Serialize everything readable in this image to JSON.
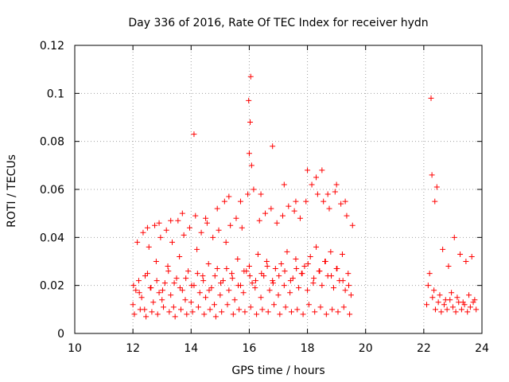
{
  "chart_data": {
    "type": "scatter",
    "title": "Day 336 of 2016, Rate Of TEC Index for receiver hydn",
    "xlabel": "GPS time / hours",
    "ylabel": "ROTI / TECUs",
    "xlim": [
      10,
      24
    ],
    "ylim": [
      0,
      0.12
    ],
    "x_ticks": [
      10,
      12,
      14,
      16,
      18,
      20,
      22,
      24
    ],
    "x_tick_labels": [
      "10",
      "12",
      "14",
      "16",
      "18",
      "20",
      "22",
      "24"
    ],
    "y_ticks": [
      0,
      0.02,
      0.04,
      0.06,
      0.08,
      0.1,
      0.12
    ],
    "y_tick_labels": [
      "0",
      "0.02",
      "0.04",
      "0.06",
      "0.08",
      "0.1",
      "0.12"
    ],
    "grid": true,
    "marker": "plus",
    "color": "#ff0000",
    "series": [
      {
        "name": "ROTI",
        "x": [
          12.0,
          12.1,
          12.2,
          12.3,
          12.4,
          12.5,
          12.6,
          12.7,
          12.8,
          12.9,
          13.0,
          13.1,
          13.2,
          13.3,
          13.4,
          13.5,
          13.6,
          13.7,
          13.8,
          13.9,
          14.0,
          14.1,
          14.2,
          14.3,
          14.4,
          14.5,
          14.6,
          14.7,
          14.8,
          14.9,
          15.0,
          15.1,
          15.2,
          15.3,
          15.4,
          15.5,
          15.6,
          15.7,
          15.8,
          15.9,
          16.0,
          16.1,
          16.2,
          16.3,
          16.4,
          16.5,
          16.6,
          16.7,
          16.8,
          16.9,
          17.0,
          17.1,
          17.2,
          17.3,
          17.4,
          17.5,
          17.6,
          17.7,
          17.8,
          17.9,
          18.0,
          18.1,
          18.2,
          18.3,
          18.4,
          18.5,
          18.6,
          18.7,
          18.8,
          18.9,
          19.0,
          19.1,
          19.2,
          19.3,
          19.4,
          19.5,
          12.05,
          12.25,
          12.45,
          12.65,
          12.85,
          13.05,
          13.25,
          13.45,
          13.65,
          13.85,
          14.05,
          14.25,
          14.45,
          14.65,
          14.85,
          15.05,
          15.25,
          15.45,
          15.65,
          15.85,
          16.05,
          16.25,
          16.45,
          16.65,
          16.85,
          17.05,
          17.25,
          17.45,
          17.65,
          17.85,
          18.05,
          18.25,
          18.45,
          18.65,
          18.85,
          19.05,
          19.25,
          19.45,
          12.15,
          12.35,
          12.55,
          12.75,
          12.95,
          13.15,
          13.35,
          13.55,
          13.75,
          13.95,
          14.15,
          14.35,
          14.55,
          14.75,
          14.95,
          15.15,
          15.35,
          15.55,
          15.75,
          15.95,
          16.15,
          16.35,
          16.55,
          16.75,
          16.95,
          17.15,
          17.35,
          17.55,
          17.75,
          17.95,
          18.15,
          18.35,
          18.55,
          18.75,
          18.95,
          19.15,
          19.35,
          19.55,
          12.02,
          12.22,
          12.42,
          12.62,
          12.82,
          13.02,
          13.22,
          13.42,
          13.62,
          13.82,
          14.02,
          14.22,
          14.42,
          14.62,
          14.82,
          15.02,
          15.22,
          15.42,
          15.62,
          15.82,
          16.02,
          16.22,
          16.42,
          16.62,
          16.82,
          17.02,
          17.22,
          17.42,
          17.62,
          17.82,
          18.02,
          18.22,
          18.42,
          18.62,
          18.82,
          19.02,
          19.22,
          19.42,
          12.5,
          12.9,
          13.3,
          13.7,
          14.1,
          14.5,
          14.9,
          15.3,
          15.7,
          16.0,
          16.03,
          16.05,
          15.98,
          16.08,
          16.4,
          16.8,
          17.2,
          17.6,
          18.0,
          18.3,
          18.5,
          18.7,
          19.0,
          19.3,
          22.1,
          22.2,
          22.3,
          22.4,
          22.5,
          22.6,
          22.7,
          22.8,
          22.9,
          23.0,
          23.1,
          23.2,
          23.3,
          23.4,
          23.5,
          23.6,
          23.7,
          23.8,
          22.15,
          22.35,
          22.55,
          22.75,
          22.95,
          23.15,
          23.35,
          23.55,
          23.75,
          22.25,
          22.28,
          22.38,
          22.45,
          22.65,
          22.85,
          23.05,
          23.25,
          23.45,
          23.65
        ],
        "y": [
          0.012,
          0.018,
          0.022,
          0.015,
          0.01,
          0.025,
          0.019,
          0.013,
          0.03,
          0.017,
          0.014,
          0.021,
          0.028,
          0.016,
          0.011,
          0.023,
          0.032,
          0.018,
          0.014,
          0.026,
          0.013,
          0.02,
          0.035,
          0.017,
          0.024,
          0.015,
          0.029,
          0.019,
          0.012,
          0.027,
          0.016,
          0.022,
          0.038,
          0.018,
          0.025,
          0.014,
          0.031,
          0.02,
          0.017,
          0.026,
          0.028,
          0.021,
          0.019,
          0.033,
          0.015,
          0.024,
          0.03,
          0.018,
          0.022,
          0.027,
          0.016,
          0.029,
          0.02,
          0.034,
          0.017,
          0.023,
          0.031,
          0.019,
          0.025,
          0.028,
          0.018,
          0.032,
          0.021,
          0.036,
          0.026,
          0.02,
          0.03,
          0.024,
          0.034,
          0.019,
          0.027,
          0.022,
          0.033,
          0.018,
          0.025,
          0.016,
          0.008,
          0.01,
          0.007,
          0.009,
          0.008,
          0.011,
          0.009,
          0.007,
          0.01,
          0.008,
          0.009,
          0.011,
          0.008,
          0.01,
          0.007,
          0.009,
          0.012,
          0.008,
          0.01,
          0.009,
          0.011,
          0.008,
          0.01,
          0.009,
          0.012,
          0.008,
          0.011,
          0.009,
          0.01,
          0.008,
          0.012,
          0.009,
          0.011,
          0.008,
          0.01,
          0.009,
          0.011,
          0.008,
          0.038,
          0.042,
          0.036,
          0.045,
          0.04,
          0.043,
          0.038,
          0.047,
          0.041,
          0.044,
          0.049,
          0.042,
          0.046,
          0.04,
          0.043,
          0.055,
          0.045,
          0.048,
          0.044,
          0.058,
          0.06,
          0.047,
          0.05,
          0.052,
          0.046,
          0.049,
          0.053,
          0.051,
          0.048,
          0.055,
          0.062,
          0.058,
          0.055,
          0.052,
          0.059,
          0.054,
          0.049,
          0.045,
          0.02,
          0.017,
          0.024,
          0.019,
          0.022,
          0.018,
          0.026,
          0.021,
          0.019,
          0.023,
          0.02,
          0.025,
          0.022,
          0.018,
          0.024,
          0.021,
          0.027,
          0.023,
          0.02,
          0.026,
          0.024,
          0.022,
          0.025,
          0.028,
          0.021,
          0.024,
          0.026,
          0.022,
          0.027,
          0.025,
          0.029,
          0.023,
          0.026,
          0.03,
          0.024,
          0.027,
          0.022,
          0.02,
          0.044,
          0.046,
          0.047,
          0.05,
          0.083,
          0.048,
          0.052,
          0.057,
          0.055,
          0.075,
          0.088,
          0.107,
          0.097,
          0.07,
          0.058,
          0.078,
          0.062,
          0.055,
          0.068,
          0.065,
          0.068,
          0.058,
          0.062,
          0.055,
          0.012,
          0.025,
          0.015,
          0.01,
          0.013,
          0.009,
          0.012,
          0.01,
          0.014,
          0.011,
          0.009,
          0.013,
          0.01,
          0.012,
          0.009,
          0.011,
          0.013,
          0.01,
          0.02,
          0.018,
          0.016,
          0.014,
          0.017,
          0.015,
          0.013,
          0.016,
          0.014,
          0.098,
          0.066,
          0.055,
          0.061,
          0.035,
          0.028,
          0.04,
          0.033,
          0.03,
          0.032
        ]
      }
    ]
  }
}
